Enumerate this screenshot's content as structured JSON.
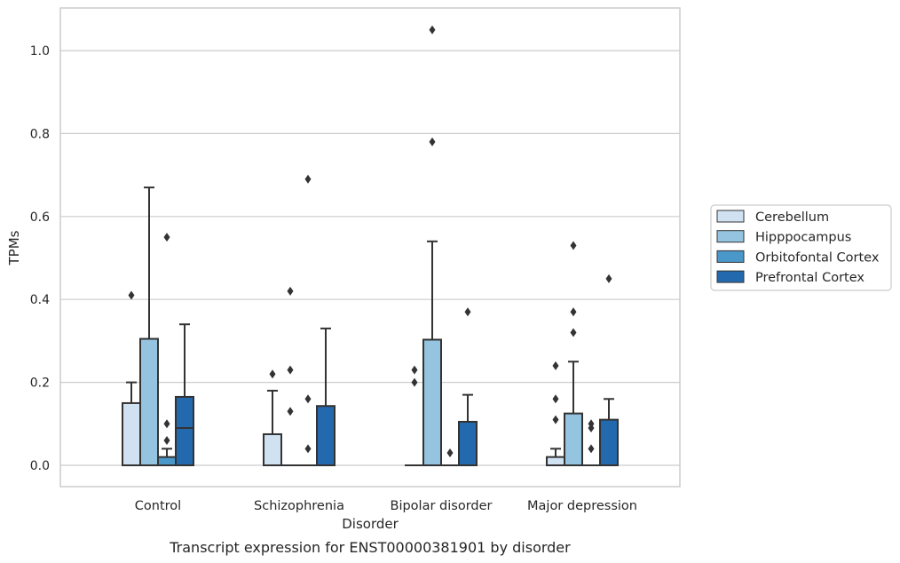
{
  "chart_data": {
    "type": "box",
    "title": "",
    "caption": "Transcript expression for ENST00000381901 by disorder",
    "xlabel": "Disorder",
    "ylabel": "TPMs",
    "ylim": [
      -0.05,
      1.1
    ],
    "yticks": [
      0.0,
      0.2,
      0.4,
      0.6,
      0.8,
      1.0
    ],
    "ytick_labels": [
      "0.0",
      "0.2",
      "0.4",
      "0.6",
      "0.8",
      "1.0"
    ],
    "grid": "horizontal",
    "legend_position": "right",
    "categories": [
      "Control",
      "Schizophrenia",
      "Bipolar disorder",
      "Major depression"
    ],
    "series": [
      {
        "name": "Cerebellum",
        "color": "#d0e1f2",
        "boxes": [
          {
            "q1": 0.0,
            "median": 0.0,
            "q3": 0.15,
            "whisker_low": 0.0,
            "whisker_high": 0.2,
            "outliers": [
              0.41
            ]
          },
          {
            "q1": 0.0,
            "median": 0.0,
            "q3": 0.075,
            "whisker_low": 0.0,
            "whisker_high": 0.18,
            "outliers": [
              0.22
            ]
          },
          {
            "q1": 0.0,
            "median": 0.0,
            "q3": 0.0,
            "whisker_low": 0.0,
            "whisker_high": 0.0,
            "outliers": [
              0.2,
              0.23
            ]
          },
          {
            "q1": 0.0,
            "median": 0.0,
            "q3": 0.02,
            "whisker_low": 0.0,
            "whisker_high": 0.04,
            "outliers": [
              0.11,
              0.16,
              0.24
            ]
          }
        ]
      },
      {
        "name": "Hipppocampus",
        "color": "#94c4df",
        "boxes": [
          {
            "q1": 0.0,
            "median": 0.0,
            "q3": 0.305,
            "whisker_low": 0.0,
            "whisker_high": 0.67,
            "outliers": []
          },
          {
            "q1": 0.0,
            "median": 0.0,
            "q3": 0.0,
            "whisker_low": 0.0,
            "whisker_high": 0.0,
            "outliers": [
              0.13,
              0.23,
              0.42
            ]
          },
          {
            "q1": 0.0,
            "median": 0.0,
            "q3": 0.303,
            "whisker_low": 0.0,
            "whisker_high": 0.54,
            "outliers": [
              0.78,
              1.05
            ]
          },
          {
            "q1": 0.0,
            "median": 0.0,
            "q3": 0.125,
            "whisker_low": 0.0,
            "whisker_high": 0.25,
            "outliers": [
              0.32,
              0.37,
              0.53
            ]
          }
        ]
      },
      {
        "name": "Orbitofontal Cortex",
        "color": "#4a98c9",
        "boxes": [
          {
            "q1": 0.0,
            "median": 0.0,
            "q3": 0.02,
            "whisker_low": 0.0,
            "whisker_high": 0.04,
            "outliers": [
              0.06,
              0.1,
              0.55
            ]
          },
          {
            "q1": 0.0,
            "median": 0.0,
            "q3": 0.0,
            "whisker_low": 0.0,
            "whisker_high": 0.0,
            "outliers": [
              0.04,
              0.16,
              0.69
            ]
          },
          {
            "q1": 0.0,
            "median": 0.0,
            "q3": 0.0,
            "whisker_low": 0.0,
            "whisker_high": 0.0,
            "outliers": [
              0.03
            ]
          },
          {
            "q1": 0.0,
            "median": 0.0,
            "q3": 0.0,
            "whisker_low": 0.0,
            "whisker_high": 0.0,
            "outliers": [
              0.04,
              0.09,
              0.1
            ]
          }
        ]
      },
      {
        "name": "Prefrontal Cortex",
        "color": "#2369ad",
        "boxes": [
          {
            "q1": 0.0,
            "median": 0.09,
            "q3": 0.165,
            "whisker_low": 0.0,
            "whisker_high": 0.34,
            "outliers": []
          },
          {
            "q1": 0.0,
            "median": 0.0,
            "q3": 0.143,
            "whisker_low": 0.0,
            "whisker_high": 0.33,
            "outliers": []
          },
          {
            "q1": 0.0,
            "median": 0.0,
            "q3": 0.105,
            "whisker_low": 0.0,
            "whisker_high": 0.17,
            "outliers": [
              0.37
            ]
          },
          {
            "q1": 0.0,
            "median": 0.0,
            "q3": 0.11,
            "whisker_low": 0.0,
            "whisker_high": 0.16,
            "outliers": [
              0.45
            ]
          }
        ]
      }
    ]
  }
}
